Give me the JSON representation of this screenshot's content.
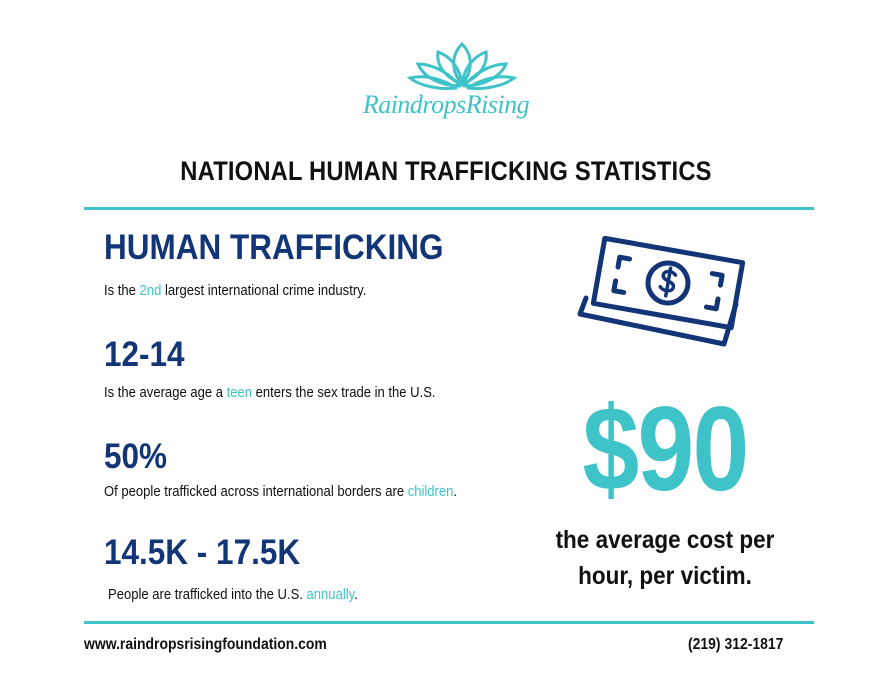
{
  "header": {
    "logo_text": "RaindropsRising",
    "title": "NATIONAL HUMAN TRAFFICKING STATISTICS"
  },
  "stats": [
    {
      "heading": "HUMAN TRAFFICKING",
      "before": "Is the ",
      "highlight": "2nd",
      "after": " largest international crime industry."
    },
    {
      "heading": "12-14",
      "before": "Is the average age a ",
      "highlight": "teen",
      "after": " enters the sex trade in the U.S."
    },
    {
      "heading": "50%",
      "before": "Of people trafficked across international borders are ",
      "highlight": "children",
      "after": "."
    },
    {
      "heading": "14.5K - 17.5K",
      "before": "People are trafficked into the U.S. ",
      "highlight": "annually",
      "after": "."
    }
  ],
  "feature": {
    "amount": "$90",
    "caption": "the average cost per hour, per victim."
  },
  "footer": {
    "website": "www.raindropsrisingfoundation.com",
    "phone": "(219) 312-1817"
  }
}
